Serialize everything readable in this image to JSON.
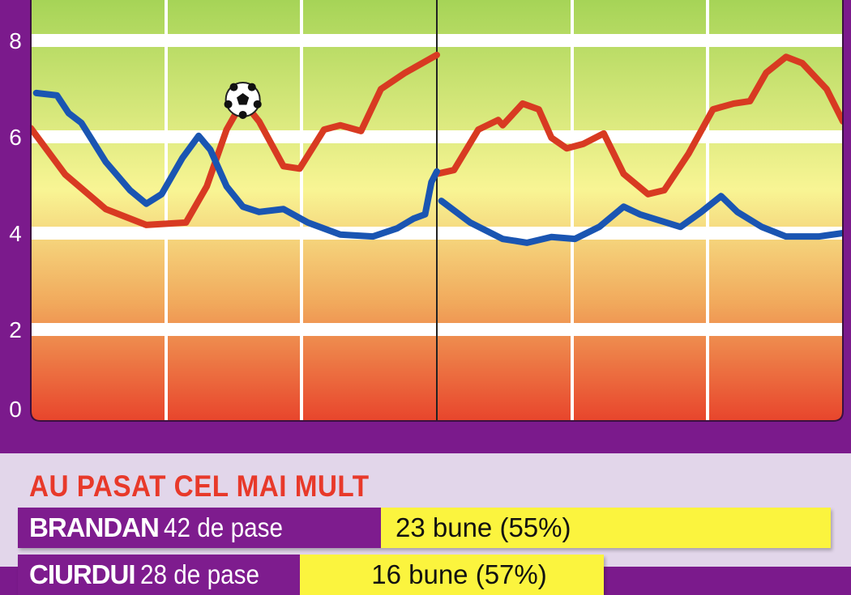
{
  "chart_data": {
    "type": "line",
    "title": "",
    "xlabel": "",
    "ylabel": "",
    "xlim": [
      0,
      90
    ],
    "ylim": [
      0,
      8.9
    ],
    "yticks": [
      0,
      2,
      4,
      6,
      8
    ],
    "xgrid_minutes": [
      15,
      30,
      45,
      60,
      75
    ],
    "halftime_minute": 45,
    "grid": true,
    "background_gradient": [
      "#a6d457",
      "#f8f594",
      "#f1a95c",
      "#e8452c"
    ],
    "marker": {
      "icon": "soccer-ball-icon",
      "minute": 23.5,
      "value": 6.74
    },
    "series": [
      {
        "color": "#d83a22",
        "halves": [
          [
            [
              0,
              6.18
            ],
            [
              3.8,
              5.22
            ],
            [
              8.3,
              4.5
            ],
            [
              12.8,
              4.17
            ],
            [
              17.2,
              4.22
            ],
            [
              19.5,
              4.97
            ],
            [
              21.7,
              6.15
            ],
            [
              23.5,
              6.74
            ],
            [
              25.3,
              6.32
            ],
            [
              28,
              5.39
            ],
            [
              29.8,
              5.34
            ],
            [
              32.5,
              6.15
            ],
            [
              34.3,
              6.24
            ],
            [
              36.6,
              6.12
            ],
            [
              38.8,
              6.99
            ],
            [
              41.5,
              7.33
            ],
            [
              45,
              7.7
            ]
          ],
          [
            [
              45,
              5.23
            ],
            [
              46.9,
              5.31
            ],
            [
              49.6,
              6.15
            ],
            [
              51.8,
              6.35
            ],
            [
              52.3,
              6.24
            ],
            [
              54.5,
              6.69
            ],
            [
              56.3,
              6.57
            ],
            [
              57.7,
              5.98
            ],
            [
              59.4,
              5.76
            ],
            [
              61.2,
              5.85
            ],
            [
              63.5,
              6.07
            ],
            [
              65.7,
              5.23
            ],
            [
              68.4,
              4.81
            ],
            [
              70.2,
              4.89
            ],
            [
              72.9,
              5.65
            ],
            [
              75.6,
              6.57
            ],
            [
              77.9,
              6.69
            ],
            [
              79.7,
              6.74
            ],
            [
              81.5,
              7.33
            ],
            [
              83.7,
              7.66
            ],
            [
              85.5,
              7.53
            ],
            [
              88.2,
              6.99
            ],
            [
              90,
              6.32
            ]
          ]
        ]
      },
      {
        "color": "#1a55b2",
        "halves": [
          [
            [
              0.6,
              6.91
            ],
            [
              2.9,
              6.86
            ],
            [
              4.2,
              6.49
            ],
            [
              5.6,
              6.29
            ],
            [
              8.3,
              5.48
            ],
            [
              11,
              4.89
            ],
            [
              12.8,
              4.61
            ],
            [
              14.5,
              4.81
            ],
            [
              16.8,
              5.56
            ],
            [
              18.6,
              6.02
            ],
            [
              19.9,
              5.73
            ],
            [
              21.7,
              4.97
            ],
            [
              23.5,
              4.55
            ],
            [
              25.3,
              4.44
            ],
            [
              28,
              4.5
            ],
            [
              30.7,
              4.22
            ],
            [
              34.3,
              3.97
            ],
            [
              37.9,
              3.93
            ],
            [
              40.6,
              4.1
            ],
            [
              42.4,
              4.3
            ],
            [
              43.7,
              4.39
            ],
            [
              44.4,
              5.06
            ],
            [
              45,
              5.28
            ]
          ],
          [
            [
              45.5,
              4.67
            ],
            [
              48.7,
              4.22
            ],
            [
              52.3,
              3.88
            ],
            [
              55,
              3.8
            ],
            [
              57.7,
              3.92
            ],
            [
              60.3,
              3.88
            ],
            [
              63,
              4.13
            ],
            [
              65.7,
              4.55
            ],
            [
              67.5,
              4.39
            ],
            [
              72,
              4.13
            ],
            [
              74.3,
              4.44
            ],
            [
              76.5,
              4.77
            ],
            [
              78.3,
              4.44
            ],
            [
              81,
              4.13
            ],
            [
              83.7,
              3.93
            ],
            [
              87.3,
              3.93
            ],
            [
              90,
              4
            ]
          ]
        ]
      }
    ]
  },
  "ytick_labels": [
    "0",
    "2",
    "4",
    "6",
    "8"
  ],
  "passes": {
    "title": "AU PASAT CEL MAI MULT",
    "rows": [
      {
        "player": "BRANDAN",
        "total": "42 de pase",
        "good": "23 bune (55%)",
        "good_fraction": 0.55
      },
      {
        "player": "CIURDUI",
        "total": "28 de pase",
        "good": "16 bune (57%)",
        "good_fraction": 0.57
      }
    ]
  },
  "colors": {
    "frame": "#7b1a8c",
    "panel": "#e2d6ea",
    "title": "#e8392a",
    "good_bar": "#fbf43e"
  }
}
